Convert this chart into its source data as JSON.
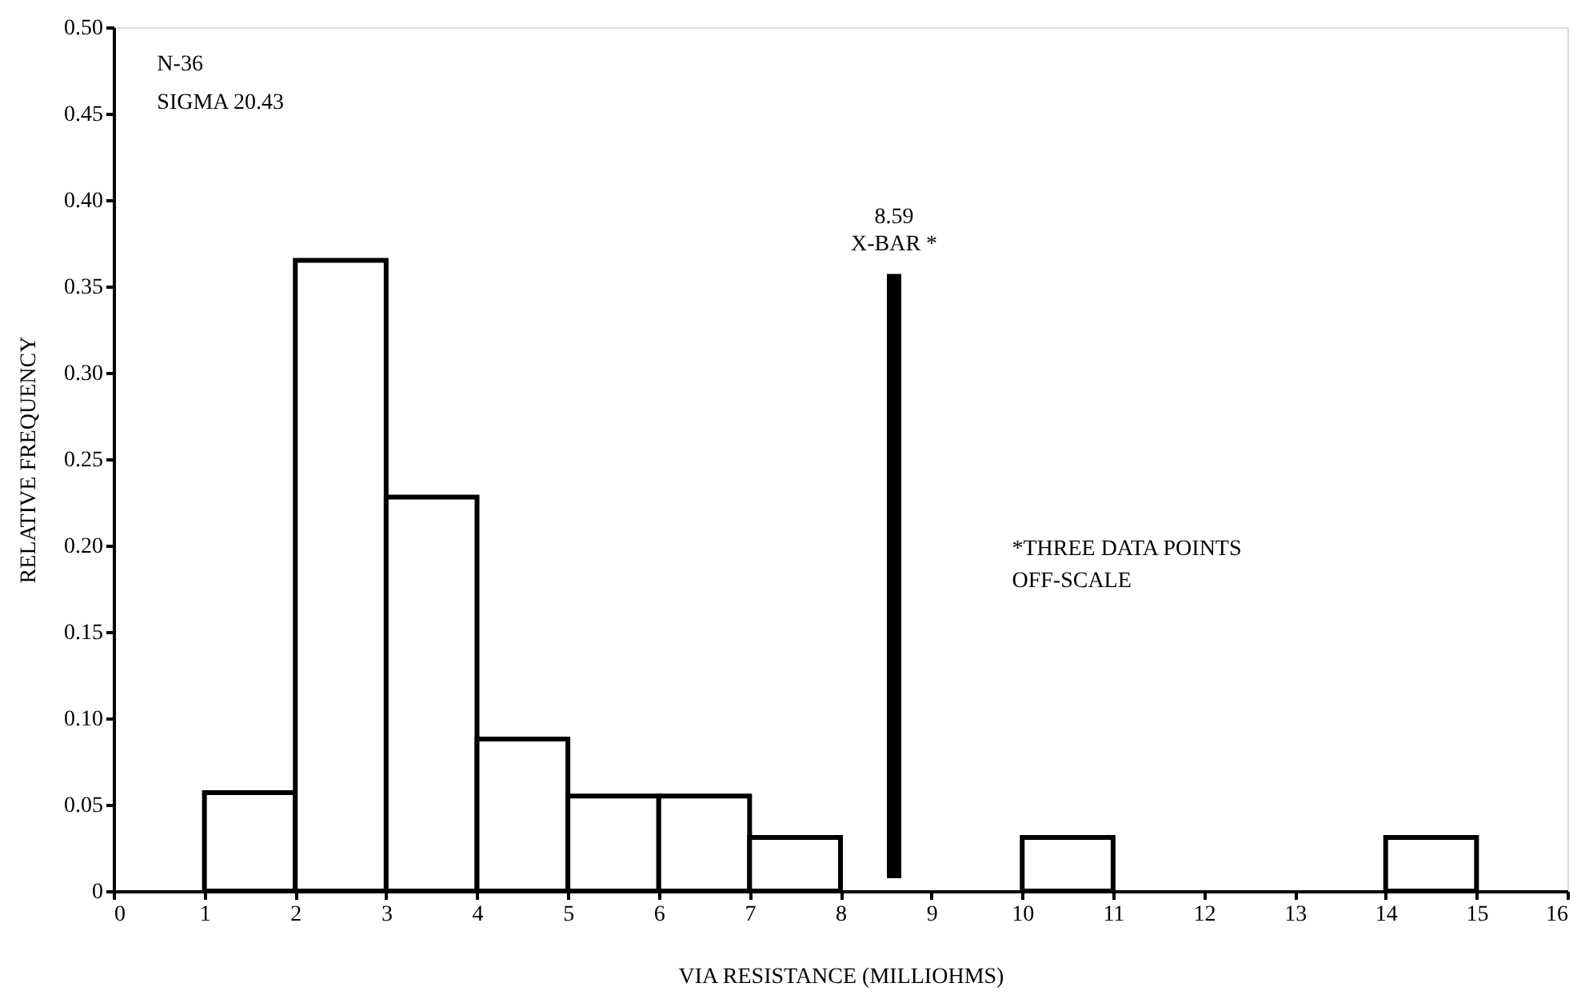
{
  "chart_data": {
    "type": "histogram",
    "xlabel": "VIA RESISTANCE (MILLIOHMS)",
    "ylabel": "RELATIVE FREQUENCY",
    "bins": [
      0,
      1,
      2,
      3,
      4,
      5,
      6,
      7,
      8,
      9,
      10,
      11,
      12,
      13,
      14,
      15,
      16
    ],
    "values": [
      0,
      0.057,
      0.365,
      0.228,
      0.088,
      0.055,
      0.055,
      0.031,
      0,
      0,
      0.031,
      0,
      0,
      0,
      0.031,
      0
    ],
    "color": "#ffffff",
    "xlim": [
      0,
      16
    ],
    "xticks": [
      0,
      1,
      2,
      3,
      4,
      5,
      6,
      7,
      8,
      9,
      10,
      11,
      12,
      13,
      14,
      15,
      16
    ],
    "ylim": [
      0,
      0.5
    ],
    "yticks": [
      0,
      {
        "value": 0.05,
        "label": "0.05"
      },
      {
        "value": 0.1,
        "label": "0.10"
      },
      {
        "value": 0.15,
        "label": "0.15"
      },
      {
        "value": 0.2,
        "label": "0.20"
      },
      {
        "value": 0.25,
        "label": "0.25"
      },
      {
        "value": 0.3,
        "label": "0.30"
      },
      {
        "value": 0.35,
        "label": "0.35"
      },
      {
        "value": 0.4,
        "label": "0.40"
      },
      {
        "value": 0.45,
        "label": "0.45"
      },
      {
        "value": 0.5,
        "label": "0.50"
      }
    ],
    "ref_lines": [
      {
        "axis": "x",
        "value": 8.59,
        "label": "X-BAR *",
        "color": "#000000"
      }
    ],
    "annotations": [
      "N-36",
      "SIGMA 20.43",
      "*THREE DATA POINTS\nOFF-SCALE",
      "8.59"
    ],
    "grid": false
  }
}
